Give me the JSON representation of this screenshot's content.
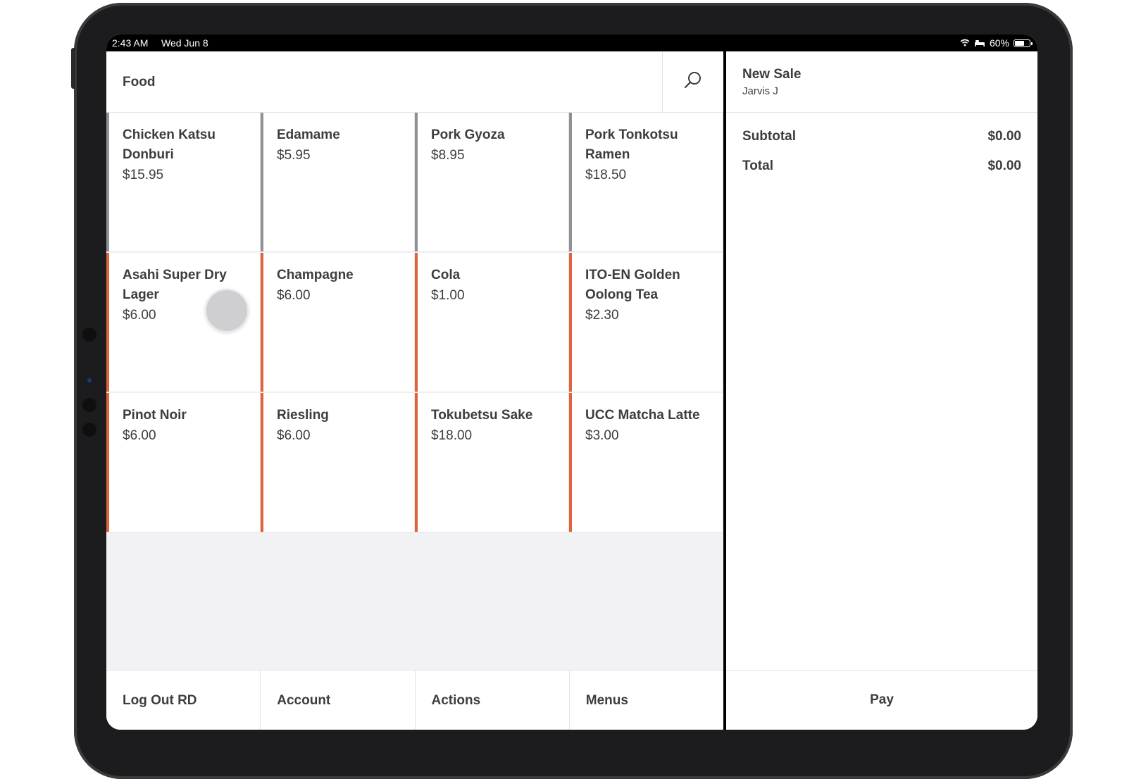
{
  "status_bar": {
    "time": "2:43 AM",
    "date": "Wed Jun 8",
    "battery": "60%"
  },
  "category": {
    "title": "Food"
  },
  "items": [
    {
      "name": "Chicken Katsu Donburi",
      "price": "$15.95",
      "color": "#8e9196"
    },
    {
      "name": "Edamame",
      "price": "$5.95",
      "color": "#8e9196"
    },
    {
      "name": "Pork Gyoza",
      "price": "$8.95",
      "color": "#8e9196"
    },
    {
      "name": "Pork Tonkotsu Ramen",
      "price": "$18.50",
      "color": "#8e9196"
    },
    {
      "name": "Asahi Super Dry Lager",
      "price": "$6.00",
      "color": "#e0623a"
    },
    {
      "name": "Champagne",
      "price": "$6.00",
      "color": "#e0623a"
    },
    {
      "name": "Cola",
      "price": "$1.00",
      "color": "#e0623a"
    },
    {
      "name": "ITO-EN Golden Oolong Tea",
      "price": "$2.30",
      "color": "#e0623a"
    },
    {
      "name": "Pinot Noir",
      "price": "$6.00",
      "color": "#e0623a"
    },
    {
      "name": "Riesling",
      "price": "$6.00",
      "color": "#e0623a"
    },
    {
      "name": "Tokubetsu Sake",
      "price": "$18.00",
      "color": "#e0623a"
    },
    {
      "name": "UCC Matcha Latte",
      "price": "$3.00",
      "color": "#e0623a"
    }
  ],
  "bottom_bar": {
    "logout": "Log Out RD",
    "account": "Account",
    "actions": "Actions",
    "menus": "Menus"
  },
  "sale": {
    "title": "New Sale",
    "employee": "Jarvis J",
    "subtotal_label": "Subtotal",
    "subtotal": "$0.00",
    "total_label": "Total",
    "total": "$0.00",
    "pay_label": "Pay"
  },
  "icons": {
    "search": "search-icon",
    "wifi": "wifi-icon",
    "bed": "bed-icon",
    "battery": "battery-icon"
  }
}
